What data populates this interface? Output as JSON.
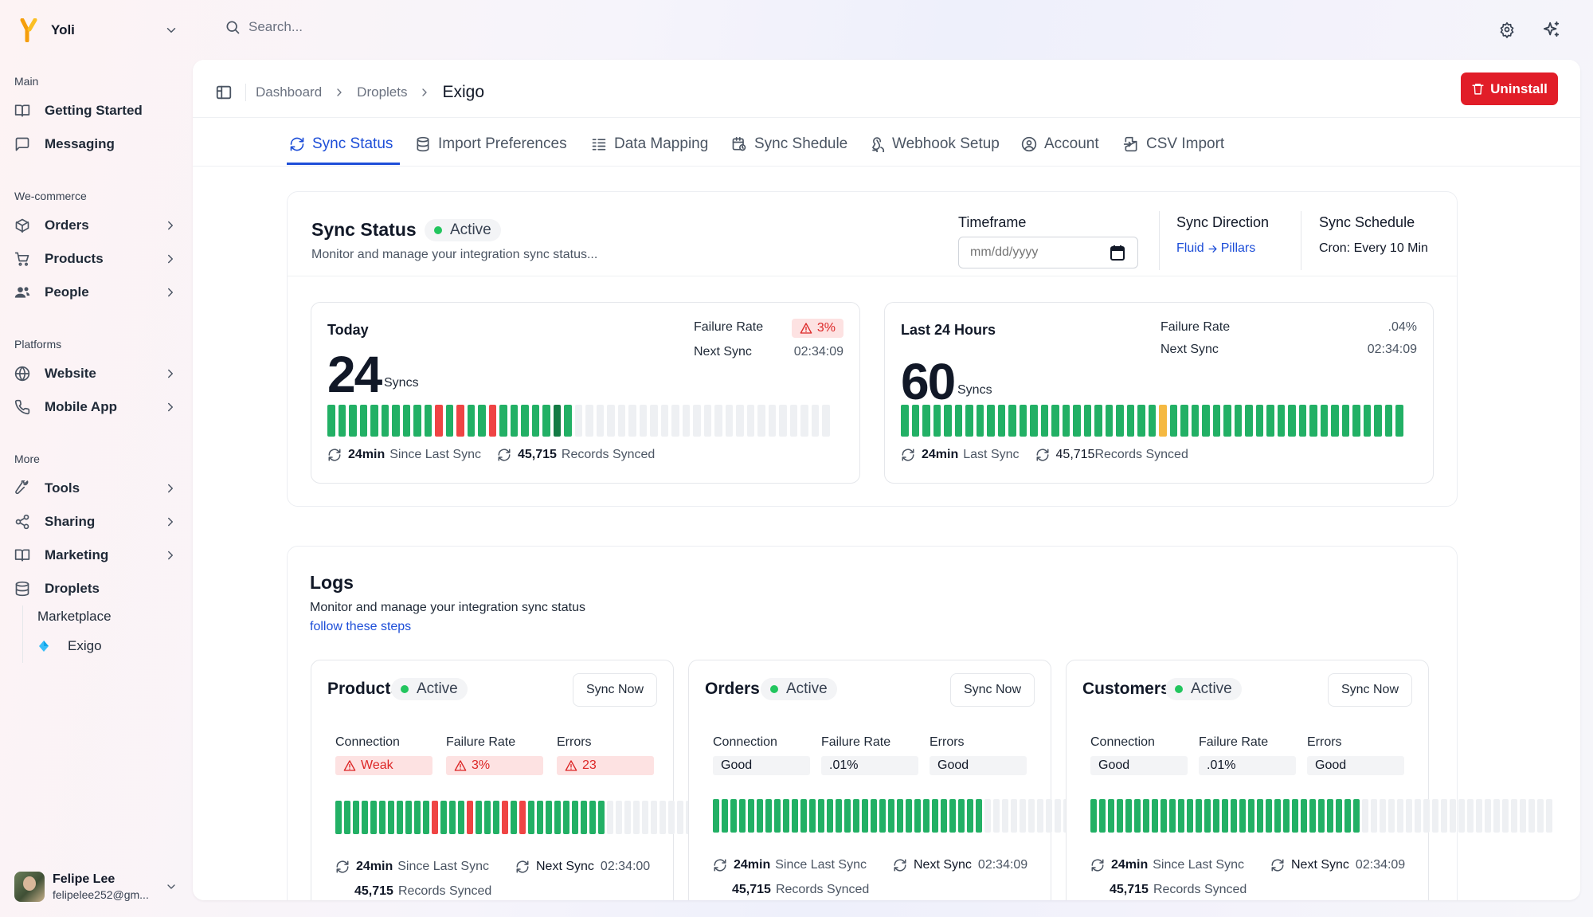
{
  "colors": {
    "good": "#22b065",
    "good_dark": "#137a44",
    "error": "#ef4444",
    "warn": "#f5b942",
    "empty": "#eef0f3",
    "accent": "#1d4ed8",
    "danger": "#e11d28"
  },
  "brand": {
    "name": "Yoli"
  },
  "sidebar": {
    "sections": {
      "main": "Main",
      "ecommerce": "We-commerce",
      "platforms": "Platforms",
      "more": "More"
    },
    "items": {
      "getting_started": "Getting Started",
      "messaging": "Messaging",
      "orders": "Orders",
      "products": "Products",
      "people": "People",
      "website": "Website",
      "mobile_app": "Mobile App",
      "tools": "Tools",
      "sharing": "Sharing",
      "marketing": "Marketing",
      "droplets": "Droplets",
      "marketplace": "Marketplace",
      "exigo": "Exigo"
    },
    "user": {
      "name": "Felipe Lee",
      "email": "felipelee252@gm..."
    }
  },
  "search": {
    "placeholder": "Search..."
  },
  "breadcrumb": {
    "items": [
      "Dashboard",
      "Droplets"
    ],
    "current": "Exigo"
  },
  "actions": {
    "uninstall": "Uninstall"
  },
  "tabs": [
    "Sync Status",
    "Import Preferences",
    "Data Mapping",
    "Sync Shedule",
    "Webhook Setup",
    "Account",
    "CSV Import"
  ],
  "sync_status": {
    "title": "Sync Status",
    "status": "Active",
    "subtitle": "Monitor and manage your integration sync status...",
    "timeframe": {
      "label": "Timeframe",
      "placeholder": "mm/dd/yyyy"
    },
    "direction": {
      "label": "Sync Direction",
      "from": "Fluid",
      "to": "Pillars"
    },
    "schedule": {
      "label": "Sync Schedule",
      "value": "Cron: Every 10 Min"
    },
    "today": {
      "title": "Today",
      "count": "24",
      "unit": "Syncs",
      "failure_label": "Failure Rate",
      "failure_value": "3%",
      "next_label": "Next Sync",
      "next_value": "02:34:09",
      "since_value": "24min",
      "since_label": "Since Last Sync",
      "records_value": "45,715",
      "records_label": "Records Synced",
      "bars": [
        "g",
        "g",
        "g",
        "g",
        "g",
        "g",
        "g",
        "g",
        "g",
        "g",
        "e",
        "g",
        "e",
        "g",
        "g",
        "e",
        "g",
        "g",
        "g",
        "g",
        "g",
        "d",
        "g",
        "o",
        "o",
        "o",
        "o",
        "o",
        "o",
        "o",
        "o",
        "o",
        "o",
        "o",
        "o",
        "o",
        "o",
        "o",
        "o",
        "o",
        "o",
        "o",
        "o",
        "o",
        "o",
        "o",
        "o"
      ]
    },
    "last24": {
      "title": "Last 24 Hours",
      "count": "60",
      "unit": "Syncs",
      "failure_label": "Failure Rate",
      "failure_value": ".04%",
      "next_label": "Next Sync",
      "next_value": "02:34:09",
      "since_value": "24min",
      "since_label": "Last Sync",
      "records_value": "45,715",
      "records_label": "Records Synced",
      "bars": [
        "g",
        "g",
        "g",
        "g",
        "g",
        "g",
        "g",
        "g",
        "g",
        "g",
        "g",
        "g",
        "g",
        "g",
        "g",
        "g",
        "g",
        "g",
        "g",
        "g",
        "g",
        "g",
        "g",
        "g",
        "y",
        "g",
        "g",
        "g",
        "g",
        "g",
        "g",
        "g",
        "g",
        "g",
        "g",
        "g",
        "g",
        "g",
        "g",
        "g",
        "g",
        "g",
        "g",
        "g",
        "g",
        "g",
        "g"
      ]
    }
  },
  "logs": {
    "title": "Logs",
    "subtitle": "Monitor and manage your integration sync status",
    "link": "follow these steps",
    "cards": [
      {
        "title": "Products",
        "status": "Active",
        "button": "Sync Now",
        "conn_label": "Connection",
        "conn_value": "Weak",
        "fail_label": "Failure Rate",
        "fail_value": "3%",
        "err_label": "Errors",
        "err_value": "23",
        "since_value": "24min",
        "since_label": "Since Last Sync",
        "next_label": "Next Sync",
        "next_value": "02:34:00",
        "records_value": "45,715",
        "records_label": "Records Synced",
        "bars": [
          "g",
          "g",
          "g",
          "g",
          "g",
          "g",
          "g",
          "g",
          "g",
          "g",
          "g",
          "e",
          "g",
          "g",
          "g",
          "e",
          "g",
          "g",
          "g",
          "e",
          "g",
          "e",
          "g",
          "g",
          "g",
          "g",
          "g",
          "g",
          "g",
          "g",
          "g",
          "o",
          "o",
          "o",
          "o",
          "o",
          "o",
          "o",
          "o",
          "o",
          "o",
          "o",
          "o",
          "o",
          "o",
          "o",
          "o",
          "o",
          "o",
          "o",
          "o",
          "o",
          "o"
        ]
      },
      {
        "title": "Orders",
        "status": "Active",
        "button": "Sync Now",
        "conn_label": "Connection",
        "conn_value": "Good",
        "fail_label": "Failure Rate",
        "fail_value": ".01%",
        "err_label": "Errors",
        "err_value": "Good",
        "since_value": "24min",
        "since_label": "Since Last Sync",
        "next_label": "Next Sync",
        "next_value": "02:34:09",
        "records_value": "45,715",
        "records_label": "Records Synced",
        "bars": [
          "g",
          "g",
          "g",
          "g",
          "g",
          "g",
          "g",
          "g",
          "g",
          "g",
          "g",
          "g",
          "g",
          "g",
          "g",
          "g",
          "g",
          "g",
          "g",
          "g",
          "g",
          "g",
          "g",
          "g",
          "g",
          "g",
          "g",
          "g",
          "g",
          "g",
          "g",
          "o",
          "o",
          "o",
          "o",
          "o",
          "o",
          "o",
          "o",
          "o",
          "o",
          "o",
          "o",
          "o",
          "o",
          "o",
          "o",
          "o",
          "o",
          "o",
          "o",
          "o",
          "o"
        ]
      },
      {
        "title": "Customers",
        "status": "Active",
        "button": "Sync Now",
        "conn_label": "Connection",
        "conn_value": "Good",
        "fail_label": "Failure Rate",
        "fail_value": ".01%",
        "err_label": "Errors",
        "err_value": "Good",
        "since_value": "24min",
        "since_label": "Since Last Sync",
        "next_label": "Next Sync",
        "next_value": "02:34:09",
        "records_value": "45,715",
        "records_label": "Records Synced",
        "bars": [
          "g",
          "g",
          "g",
          "g",
          "g",
          "g",
          "g",
          "g",
          "g",
          "g",
          "g",
          "g",
          "g",
          "g",
          "g",
          "g",
          "g",
          "g",
          "g",
          "g",
          "g",
          "g",
          "g",
          "g",
          "g",
          "g",
          "g",
          "g",
          "g",
          "g",
          "g",
          "o",
          "o",
          "o",
          "o",
          "o",
          "o",
          "o",
          "o",
          "o",
          "o",
          "o",
          "o",
          "o",
          "o",
          "o",
          "o",
          "o",
          "o",
          "o",
          "o",
          "o",
          "o"
        ]
      }
    ]
  }
}
